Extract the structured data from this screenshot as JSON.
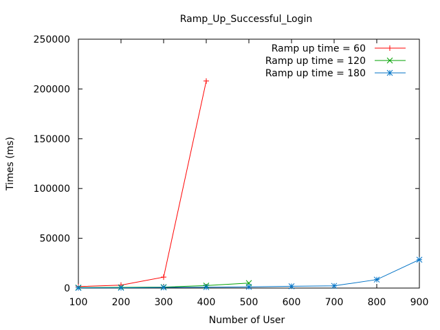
{
  "chart_data": {
    "type": "line",
    "title": "Ramp_Up_Successful_Login",
    "xlabel": "Number of User",
    "ylabel": "Times (ms)",
    "xlim": [
      100,
      900
    ],
    "ylim": [
      0,
      250000
    ],
    "xticks": [
      "100",
      "200",
      "300",
      "400",
      "500",
      "600",
      "700",
      "800",
      "900"
    ],
    "yticks": [
      "0",
      "50000",
      "100000",
      "150000",
      "200000",
      "250000"
    ],
    "grid": false,
    "legend_position": "top-right",
    "series": [
      {
        "name": "Ramp up time = 60",
        "color": "#ff0000",
        "marker": "plus",
        "x": [
          100,
          200,
          300,
          400
        ],
        "y": [
          1500,
          3000,
          11000,
          208000
        ]
      },
      {
        "name": "Ramp up time = 120",
        "color": "#00a000",
        "marker": "cross",
        "x": [
          100,
          200,
          300,
          400,
          500
        ],
        "y": [
          500,
          700,
          1000,
          2500,
          5000
        ]
      },
      {
        "name": "Ramp up time = 180",
        "color": "#0072c6",
        "marker": "star",
        "x": [
          100,
          200,
          300,
          400,
          500,
          600,
          700,
          800,
          900
        ],
        "y": [
          200,
          300,
          600,
          900,
          1200,
          1800,
          2200,
          8500,
          28500
        ]
      }
    ]
  }
}
